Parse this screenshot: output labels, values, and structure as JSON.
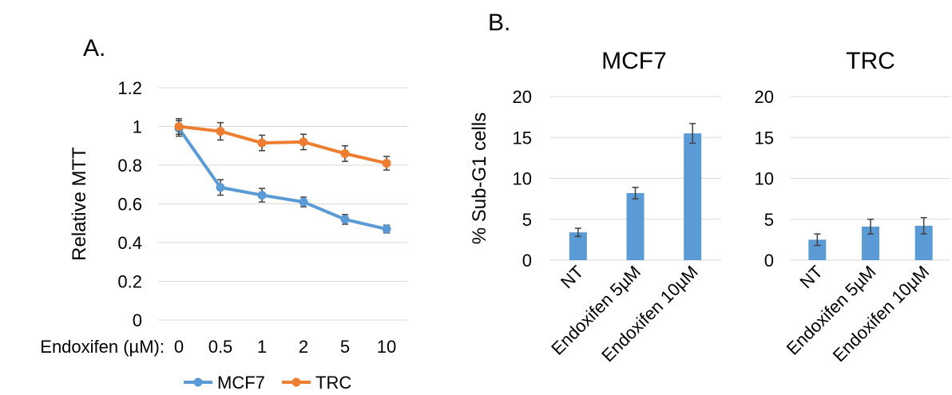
{
  "figure": {
    "panel_a_label": "A.",
    "panel_b_label": "B."
  },
  "colors": {
    "mcf7": "#5b9bd5",
    "trc": "#ed7d31",
    "bar": "#5b9bd5",
    "error_bar": "#404040",
    "grid": "#d9d9d9"
  },
  "chart_data": [
    {
      "type": "line",
      "panel": "A.",
      "title": "",
      "ylabel": "Relative MTT",
      "xlabel": "Endoxifen (µM):",
      "categories": [
        "0",
        "0.5",
        "1",
        "2",
        "5",
        "10"
      ],
      "ylim": [
        0,
        1.2
      ],
      "yticks": [
        "0",
        "0.2",
        "0.4",
        "0.6",
        "0.8",
        "1",
        "1.2"
      ],
      "grid": true,
      "legend": "bottom",
      "series": [
        {
          "name": "MCF7",
          "values": [
            0.99,
            0.685,
            0.645,
            0.61,
            0.52,
            0.47
          ],
          "errors": [
            0.04,
            0.04,
            0.035,
            0.025,
            0.025,
            0.02
          ]
        },
        {
          "name": "TRC",
          "values": [
            1.0,
            0.975,
            0.915,
            0.92,
            0.86,
            0.81
          ],
          "errors": [
            0.04,
            0.045,
            0.04,
            0.04,
            0.04,
            0.035
          ]
        }
      ]
    },
    {
      "type": "bar",
      "panel": "B.",
      "title": "MCF7",
      "ylabel": "% Sub-G1 cells",
      "categories": [
        "NT",
        "Endoxifen 5µM",
        "Endoxifen 10µM"
      ],
      "values": [
        3.4,
        8.2,
        15.5
      ],
      "errors": [
        0.5,
        0.7,
        1.2
      ],
      "ylim": [
        0,
        20
      ],
      "yticks": [
        "0",
        "5",
        "10",
        "15",
        "20"
      ],
      "grid": true
    },
    {
      "type": "bar",
      "panel": "B.",
      "title": "TRC",
      "ylabel": "",
      "categories": [
        "NT",
        "Endoxifen 5µM",
        "Endoxifen 10µM"
      ],
      "values": [
        2.5,
        4.1,
        4.2
      ],
      "errors": [
        0.7,
        0.9,
        1.0
      ],
      "ylim": [
        0,
        20
      ],
      "yticks": [
        "0",
        "5",
        "10",
        "15",
        "20"
      ],
      "grid": true
    }
  ]
}
